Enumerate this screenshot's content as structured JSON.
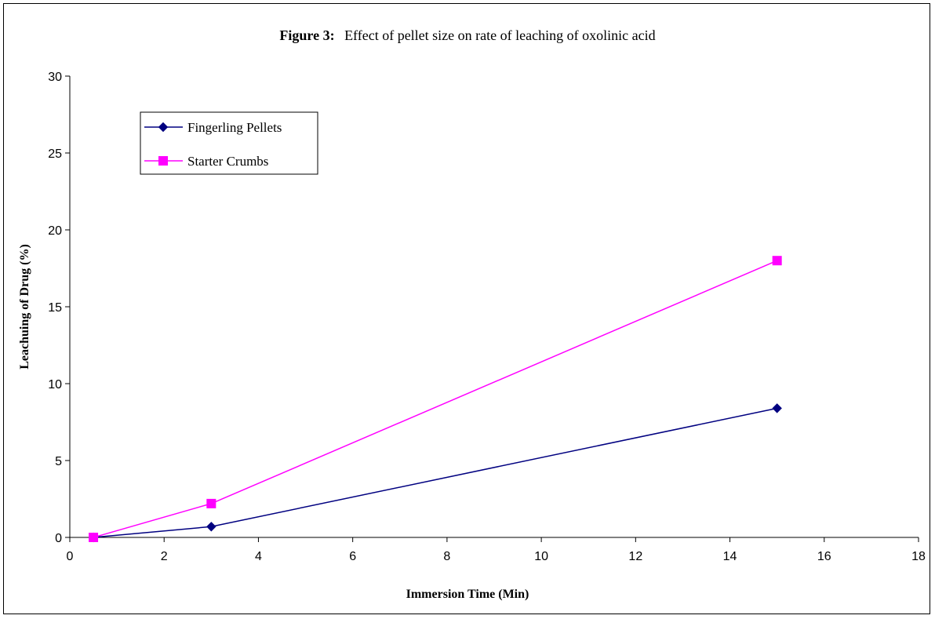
{
  "chart_data": {
    "type": "line",
    "title_prefix": "Figure 3:",
    "title": "Effect of pellet size on rate of leaching of oxolinic acid",
    "xlabel": "Immersion Time (Min)",
    "ylabel": "Leachuing of Drug (%)",
    "xlim": [
      0,
      18
    ],
    "ylim": [
      0,
      30
    ],
    "xticks": [
      0,
      2,
      4,
      6,
      8,
      10,
      12,
      14,
      16,
      18
    ],
    "yticks": [
      0,
      5,
      10,
      15,
      20,
      25,
      30
    ],
    "grid": false,
    "legend_position": "top-left",
    "series": [
      {
        "name": "Fingerling Pellets",
        "color": "#000080",
        "marker": "diamond",
        "x": [
          0.5,
          3,
          15
        ],
        "y": [
          0,
          0.7,
          8.4
        ]
      },
      {
        "name": "Starter Crumbs",
        "color": "#ff00ff",
        "marker": "square",
        "x": [
          0.5,
          3,
          15
        ],
        "y": [
          0,
          2.2,
          18
        ]
      }
    ]
  }
}
